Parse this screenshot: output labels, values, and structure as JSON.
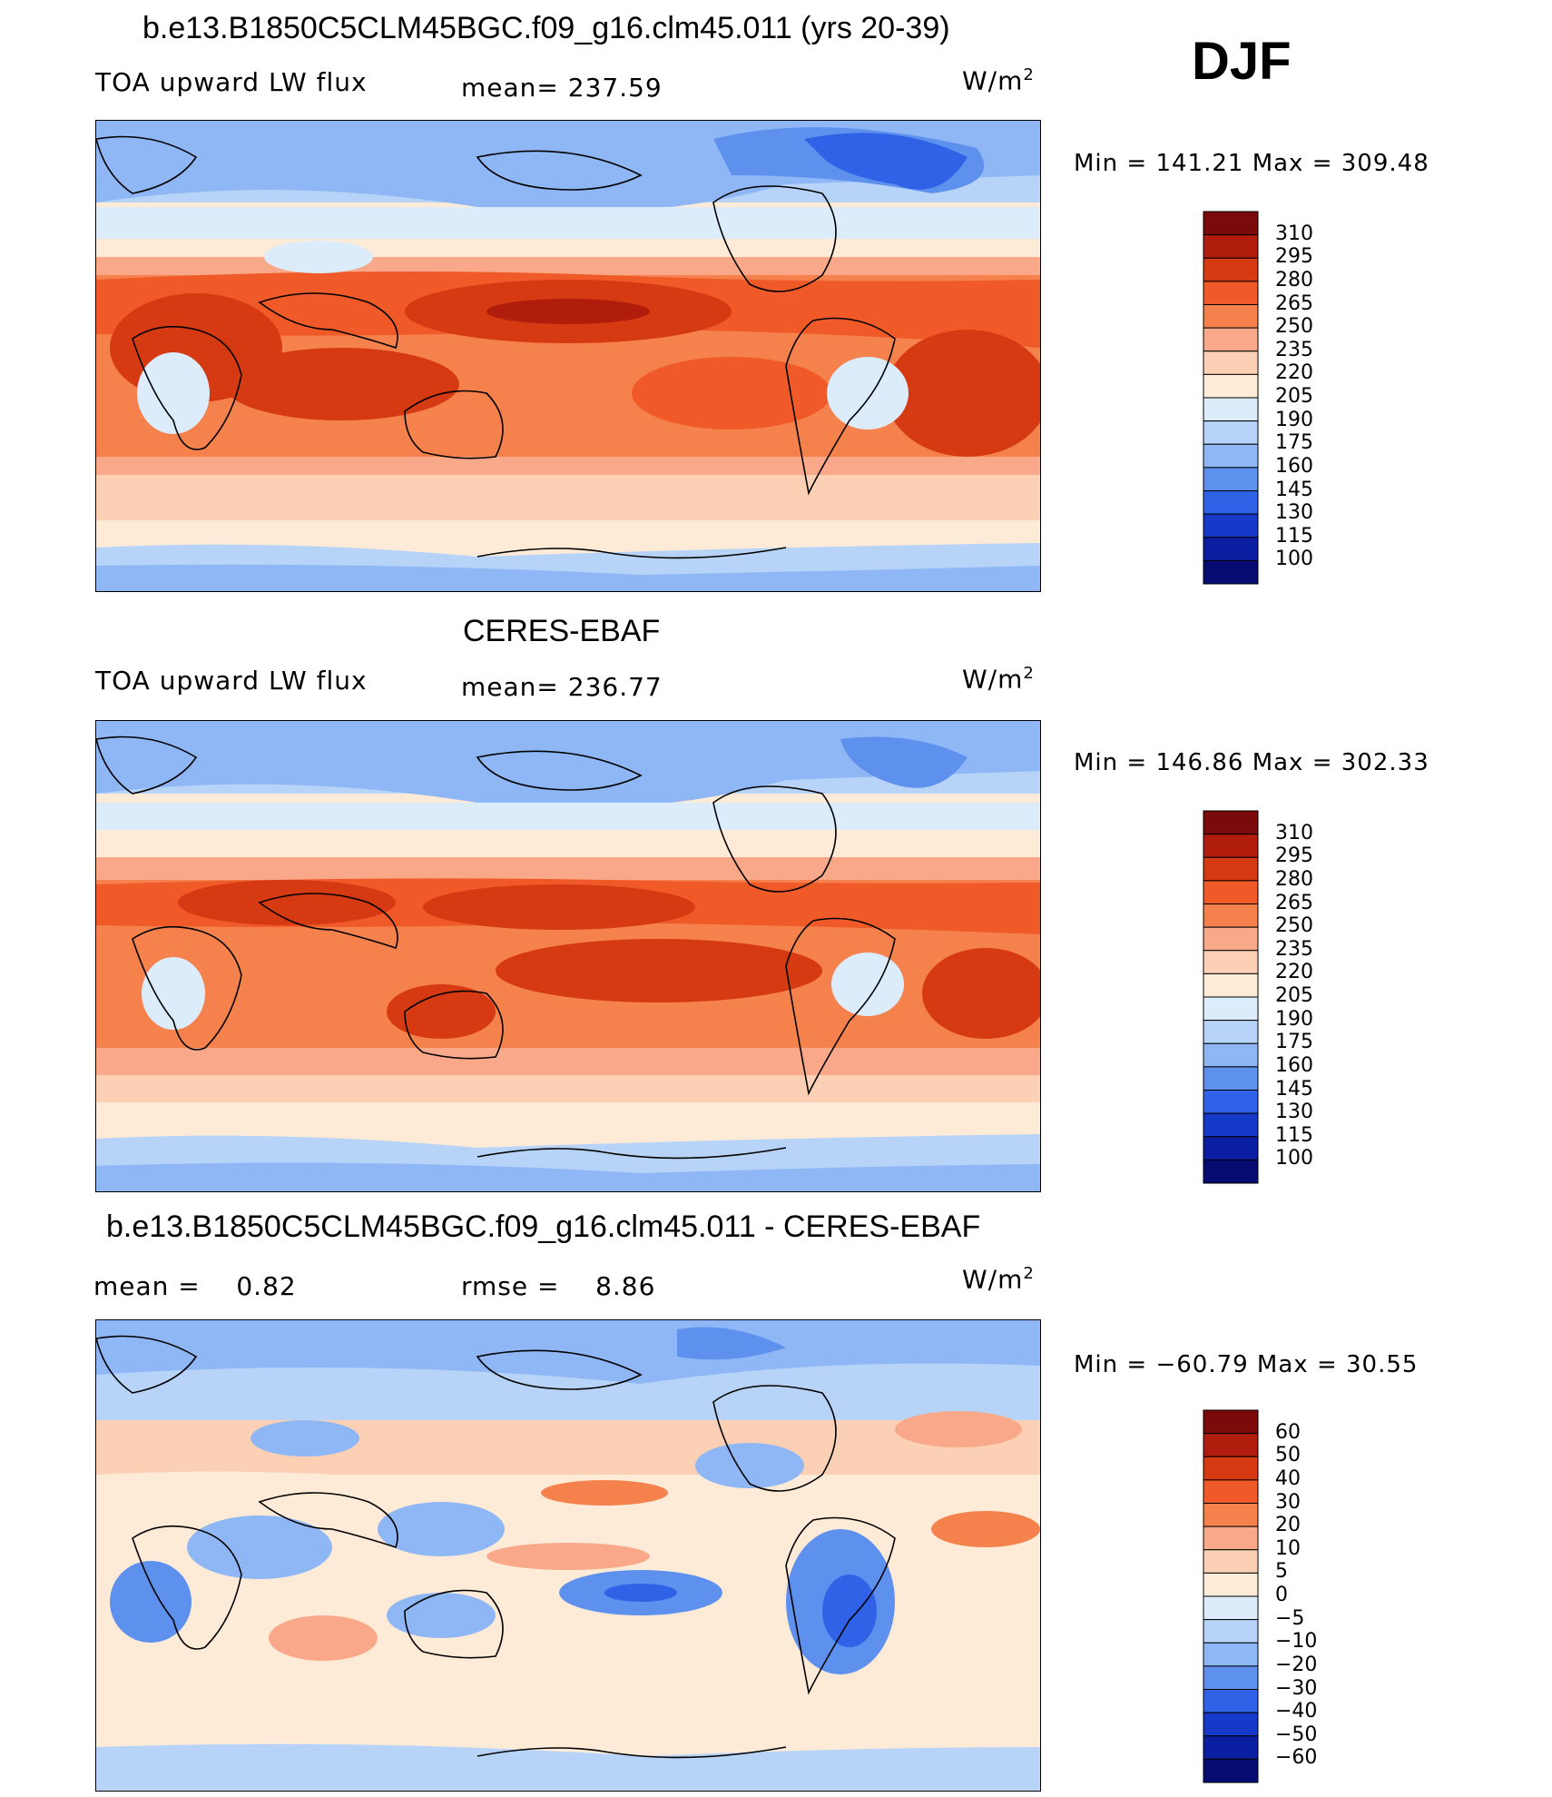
{
  "season": "DJF",
  "panels": [
    {
      "title": "b.e13.B1850C5CLM45BGC.f09_g16.clm45.011 (yrs 20-39)",
      "left_label": "TOA upward LW flux",
      "center_label": "mean= 237.59",
      "units": "W/m",
      "units_sup": "2",
      "minmax": "Min = 141.21 Max = 309.48",
      "colorbar_labels": [
        "310",
        "295",
        "280",
        "265",
        "250",
        "235",
        "220",
        "205",
        "190",
        "175",
        "160",
        "145",
        "130",
        "115",
        "100"
      ]
    },
    {
      "title": "CERES-EBAF",
      "left_label": "TOA upward LW flux",
      "center_label": "mean= 236.77",
      "units": "W/m",
      "units_sup": "2",
      "minmax": "Min = 146.86 Max = 302.33",
      "colorbar_labels": [
        "310",
        "295",
        "280",
        "265",
        "250",
        "235",
        "220",
        "205",
        "190",
        "175",
        "160",
        "145",
        "130",
        "115",
        "100"
      ]
    },
    {
      "title": "b.e13.B1850C5CLM45BGC.f09_g16.clm45.011 - CERES-EBAF",
      "left_label": "mean =    0.82",
      "center_label": "rmse =    8.86",
      "units": "W/m",
      "units_sup": "2",
      "minmax": "Min = −60.79 Max =   30.55",
      "colorbar_labels": [
        "60",
        "50",
        "40",
        "30",
        "20",
        "10",
        "5",
        "0",
        "−5",
        "−10",
        "−20",
        "−30",
        "−40",
        "−50",
        "−60"
      ]
    }
  ],
  "colors": {
    "flux_scale": [
      "#7b0a0a",
      "#b11d0c",
      "#d63a12",
      "#ef5a28",
      "#f5814d",
      "#f9a98a",
      "#fcd0b4",
      "#fdebd8",
      "#dcecfb",
      "#b7d4f8",
      "#8fb7f5",
      "#5e90ee",
      "#2f62e6",
      "#1639c9",
      "#0a1ea1",
      "#050b70"
    ],
    "diff_scale": [
      "#7b0a0a",
      "#b11d0c",
      "#d63a12",
      "#ef5a28",
      "#f5814d",
      "#f9a98a",
      "#fcd0b4",
      "#fdebd8",
      "#dcecfb",
      "#b7d4f8",
      "#8fb7f5",
      "#5e90ee",
      "#2f62e6",
      "#1639c9",
      "#0a1ea1",
      "#050b70"
    ]
  }
}
